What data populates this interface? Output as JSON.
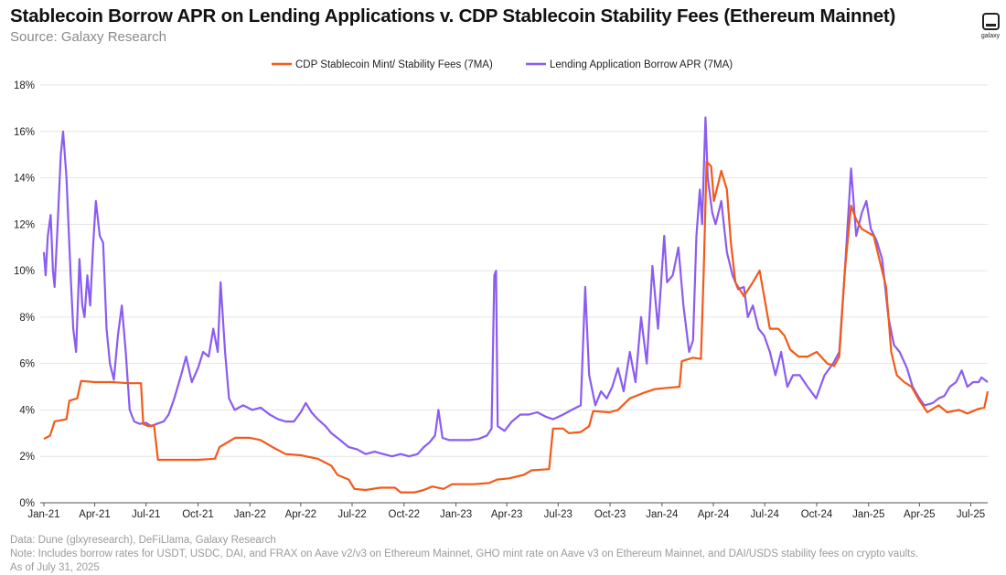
{
  "header": {
    "title": "Stablecoin Borrow APR on Lending Applications v. CDP Stablecoin Stability Fees (Ethereum Mainnet)",
    "subtitle": "Source: Galaxy Research",
    "logo_text": "galaxy"
  },
  "footer": {
    "line1": "Data: Dune (glxyresearch), DeFiLlama, Galaxy Research",
    "line2": "Note: Includes borrow rates for USDT, USDC, DAI, and FRAX on Aave v2/v3 on Ethereum Mainnet, GHO mint rate on Aave v3 on Ethereum Mainnet, and DAI/USDS stability fees on crypto vaults.",
    "line3": "As of July 31, 2025"
  },
  "chart_data": {
    "type": "line",
    "title": "Stablecoin Borrow APR on Lending Applications v. CDP Stablecoin Stability Fees (Ethereum Mainnet)",
    "x_start": "2021-01-01",
    "x_end": "2025-07-31",
    "x_ticks": [
      "Jan-21",
      "Apr-21",
      "Jul-21",
      "Oct-21",
      "Jan-22",
      "Apr-22",
      "Jul-22",
      "Oct-22",
      "Jan-23",
      "Apr-23",
      "Jul-23",
      "Oct-23",
      "Jan-24",
      "Apr-24",
      "Jul-24",
      "Oct-24",
      "Jan-25",
      "Apr-25",
      "Jul-25"
    ],
    "y_ticks": [
      "0%",
      "2%",
      "4%",
      "6%",
      "8%",
      "10%",
      "12%",
      "14%",
      "16%",
      "18%"
    ],
    "ylim": [
      0,
      18
    ],
    "grid": "horizontal",
    "legend_position": "top-center",
    "series": [
      {
        "name": "CDP Stablecoin Mint/ Stability Fees (7MA)",
        "color": "#f25a1a",
        "points": [
          [
            "2021-01-01",
            2.75
          ],
          [
            "2021-01-12",
            2.9
          ],
          [
            "2021-01-20",
            3.5
          ],
          [
            "2021-02-10",
            3.6
          ],
          [
            "2021-02-15",
            4.4
          ],
          [
            "2021-03-01",
            4.5
          ],
          [
            "2021-03-08",
            5.25
          ],
          [
            "2021-04-01",
            5.2
          ],
          [
            "2021-05-01",
            5.2
          ],
          [
            "2021-06-01",
            5.15
          ],
          [
            "2021-06-22",
            5.15
          ],
          [
            "2021-06-26",
            3.4
          ],
          [
            "2021-07-05",
            3.3
          ],
          [
            "2021-07-15",
            3.35
          ],
          [
            "2021-07-22",
            1.85
          ],
          [
            "2021-09-01",
            1.85
          ],
          [
            "2021-10-01",
            1.85
          ],
          [
            "2021-10-31",
            1.9
          ],
          [
            "2021-11-08",
            2.4
          ],
          [
            "2021-11-22",
            2.6
          ],
          [
            "2021-12-06",
            2.8
          ],
          [
            "2022-01-01",
            2.8
          ],
          [
            "2022-01-20",
            2.7
          ],
          [
            "2022-02-10",
            2.4
          ],
          [
            "2022-03-05",
            2.1
          ],
          [
            "2022-04-01",
            2.05
          ],
          [
            "2022-05-01",
            1.9
          ],
          [
            "2022-05-25",
            1.6
          ],
          [
            "2022-06-05",
            1.2
          ],
          [
            "2022-06-25",
            1.0
          ],
          [
            "2022-07-05",
            0.6
          ],
          [
            "2022-07-25",
            0.55
          ],
          [
            "2022-08-20",
            0.65
          ],
          [
            "2022-09-15",
            0.65
          ],
          [
            "2022-09-25",
            0.45
          ],
          [
            "2022-10-20",
            0.45
          ],
          [
            "2022-11-05",
            0.55
          ],
          [
            "2022-11-20",
            0.7
          ],
          [
            "2022-12-10",
            0.6
          ],
          [
            "2022-12-25",
            0.8
          ],
          [
            "2023-01-31",
            0.8
          ],
          [
            "2023-03-01",
            0.85
          ],
          [
            "2023-03-15",
            1.0
          ],
          [
            "2023-04-05",
            1.05
          ],
          [
            "2023-05-01",
            1.2
          ],
          [
            "2023-05-15",
            1.4
          ],
          [
            "2023-06-15",
            1.45
          ],
          [
            "2023-06-22",
            3.2
          ],
          [
            "2023-07-10",
            3.2
          ],
          [
            "2023-07-20",
            3.0
          ],
          [
            "2023-08-10",
            3.05
          ],
          [
            "2023-08-25",
            3.3
          ],
          [
            "2023-09-01",
            3.95
          ],
          [
            "2023-09-30",
            3.9
          ],
          [
            "2023-10-15",
            4.0
          ],
          [
            "2023-11-05",
            4.5
          ],
          [
            "2023-12-01",
            4.75
          ],
          [
            "2023-12-20",
            4.9
          ],
          [
            "2024-01-10",
            4.95
          ],
          [
            "2024-02-01",
            5.0
          ],
          [
            "2024-02-05",
            6.1
          ],
          [
            "2024-02-25",
            6.25
          ],
          [
            "2024-03-10",
            6.2
          ],
          [
            "2024-03-15",
            10.0
          ],
          [
            "2024-03-20",
            14.7
          ],
          [
            "2024-03-28",
            14.5
          ],
          [
            "2024-04-02",
            13.0
          ],
          [
            "2024-04-15",
            14.3
          ],
          [
            "2024-04-25",
            13.5
          ],
          [
            "2024-05-02",
            11.2
          ],
          [
            "2024-05-10",
            9.5
          ],
          [
            "2024-05-25",
            8.9
          ],
          [
            "2024-06-10",
            9.5
          ],
          [
            "2024-06-22",
            10.0
          ],
          [
            "2024-07-10",
            7.5
          ],
          [
            "2024-07-25",
            7.5
          ],
          [
            "2024-08-05",
            7.2
          ],
          [
            "2024-08-15",
            6.6
          ],
          [
            "2024-08-30",
            6.3
          ],
          [
            "2024-09-15",
            6.3
          ],
          [
            "2024-10-01",
            6.5
          ],
          [
            "2024-10-20",
            6.0
          ],
          [
            "2024-11-01",
            5.9
          ],
          [
            "2024-11-10",
            6.3
          ],
          [
            "2024-11-20",
            10.0
          ],
          [
            "2024-12-01",
            12.8
          ],
          [
            "2024-12-10",
            12.2
          ],
          [
            "2024-12-20",
            11.8
          ],
          [
            "2025-01-10",
            11.5
          ],
          [
            "2025-02-01",
            9.3
          ],
          [
            "2025-02-10",
            6.5
          ],
          [
            "2025-02-20",
            5.5
          ],
          [
            "2025-03-05",
            5.2
          ],
          [
            "2025-03-18",
            5.0
          ],
          [
            "2025-04-01",
            4.4
          ],
          [
            "2025-04-15",
            3.9
          ],
          [
            "2025-05-05",
            4.2
          ],
          [
            "2025-05-20",
            3.9
          ],
          [
            "2025-06-10",
            4.0
          ],
          [
            "2025-06-25",
            3.85
          ],
          [
            "2025-07-15",
            4.05
          ],
          [
            "2025-07-25",
            4.1
          ],
          [
            "2025-07-31",
            4.8
          ]
        ]
      },
      {
        "name": "Lending Application Borrow APR (7MA)",
        "color": "#8a5cf0",
        "points": [
          [
            "2021-01-01",
            10.8
          ],
          [
            "2021-01-04",
            9.8
          ],
          [
            "2021-01-08",
            11.5
          ],
          [
            "2021-01-13",
            12.4
          ],
          [
            "2021-01-17",
            10.0
          ],
          [
            "2021-01-20",
            9.3
          ],
          [
            "2021-01-25",
            11.8
          ],
          [
            "2021-01-31",
            15.0
          ],
          [
            "2021-02-04",
            16.0
          ],
          [
            "2021-02-10",
            14.0
          ],
          [
            "2021-02-17",
            10.0
          ],
          [
            "2021-02-22",
            7.5
          ],
          [
            "2021-02-27",
            6.5
          ],
          [
            "2021-03-05",
            10.5
          ],
          [
            "2021-03-10",
            8.5
          ],
          [
            "2021-03-14",
            8.0
          ],
          [
            "2021-03-19",
            9.8
          ],
          [
            "2021-03-24",
            8.5
          ],
          [
            "2021-03-29",
            11.0
          ],
          [
            "2021-04-03",
            13.0
          ],
          [
            "2021-04-10",
            11.5
          ],
          [
            "2021-04-16",
            11.2
          ],
          [
            "2021-04-22",
            7.5
          ],
          [
            "2021-04-28",
            6.0
          ],
          [
            "2021-05-05",
            5.3
          ],
          [
            "2021-05-12",
            7.2
          ],
          [
            "2021-05-19",
            8.5
          ],
          [
            "2021-05-26",
            6.5
          ],
          [
            "2021-06-02",
            4.0
          ],
          [
            "2021-06-10",
            3.5
          ],
          [
            "2021-06-20",
            3.4
          ],
          [
            "2021-07-01",
            3.45
          ],
          [
            "2021-07-10",
            3.3
          ],
          [
            "2021-07-20",
            3.4
          ],
          [
            "2021-08-01",
            3.5
          ],
          [
            "2021-08-10",
            3.8
          ],
          [
            "2021-08-20",
            4.5
          ],
          [
            "2021-09-01",
            5.5
          ],
          [
            "2021-09-10",
            6.3
          ],
          [
            "2021-09-20",
            5.2
          ],
          [
            "2021-10-01",
            5.8
          ],
          [
            "2021-10-10",
            6.5
          ],
          [
            "2021-10-20",
            6.3
          ],
          [
            "2021-10-28",
            7.5
          ],
          [
            "2021-11-05",
            6.5
          ],
          [
            "2021-11-10",
            9.5
          ],
          [
            "2021-11-18",
            6.5
          ],
          [
            "2021-11-25",
            4.5
          ],
          [
            "2021-12-05",
            4.0
          ],
          [
            "2021-12-20",
            4.2
          ],
          [
            "2022-01-05",
            4.0
          ],
          [
            "2022-01-20",
            4.1
          ],
          [
            "2022-02-05",
            3.8
          ],
          [
            "2022-02-20",
            3.6
          ],
          [
            "2022-03-05",
            3.5
          ],
          [
            "2022-03-20",
            3.5
          ],
          [
            "2022-04-01",
            3.9
          ],
          [
            "2022-04-10",
            4.3
          ],
          [
            "2022-04-20",
            3.9
          ],
          [
            "2022-05-01",
            3.6
          ],
          [
            "2022-05-15",
            3.3
          ],
          [
            "2022-05-25",
            3.0
          ],
          [
            "2022-06-10",
            2.7
          ],
          [
            "2022-06-25",
            2.4
          ],
          [
            "2022-07-10",
            2.3
          ],
          [
            "2022-07-25",
            2.1
          ],
          [
            "2022-08-10",
            2.2
          ],
          [
            "2022-08-25",
            2.1
          ],
          [
            "2022-09-10",
            2.0
          ],
          [
            "2022-09-25",
            2.1
          ],
          [
            "2022-10-10",
            2.0
          ],
          [
            "2022-10-25",
            2.1
          ],
          [
            "2022-11-05",
            2.4
          ],
          [
            "2022-11-15",
            2.6
          ],
          [
            "2022-11-25",
            2.9
          ],
          [
            "2022-12-01",
            4.0
          ],
          [
            "2022-12-08",
            2.8
          ],
          [
            "2022-12-20",
            2.7
          ],
          [
            "2023-01-10",
            2.7
          ],
          [
            "2023-01-25",
            2.7
          ],
          [
            "2023-02-10",
            2.75
          ],
          [
            "2023-02-25",
            2.9
          ],
          [
            "2023-03-05",
            3.2
          ],
          [
            "2023-03-10",
            9.8
          ],
          [
            "2023-03-13",
            10.0
          ],
          [
            "2023-03-16",
            3.3
          ],
          [
            "2023-03-28",
            3.1
          ],
          [
            "2023-04-10",
            3.5
          ],
          [
            "2023-04-25",
            3.8
          ],
          [
            "2023-05-10",
            3.8
          ],
          [
            "2023-05-25",
            3.9
          ],
          [
            "2023-06-10",
            3.7
          ],
          [
            "2023-06-22",
            3.6
          ],
          [
            "2023-07-10",
            3.8
          ],
          [
            "2023-07-25",
            4.0
          ],
          [
            "2023-08-10",
            4.2
          ],
          [
            "2023-08-18",
            9.3
          ],
          [
            "2023-08-25",
            5.5
          ],
          [
            "2023-09-05",
            4.2
          ],
          [
            "2023-09-15",
            4.8
          ],
          [
            "2023-09-25",
            4.5
          ],
          [
            "2023-10-05",
            5.0
          ],
          [
            "2023-10-15",
            5.8
          ],
          [
            "2023-10-25",
            4.8
          ],
          [
            "2023-11-05",
            6.5
          ],
          [
            "2023-11-15",
            5.2
          ],
          [
            "2023-11-25",
            8.0
          ],
          [
            "2023-12-05",
            6.0
          ],
          [
            "2023-12-15",
            10.2
          ],
          [
            "2023-12-25",
            7.5
          ],
          [
            "2024-01-05",
            11.5
          ],
          [
            "2024-01-10",
            9.5
          ],
          [
            "2024-01-20",
            9.8
          ],
          [
            "2024-01-30",
            11.0
          ],
          [
            "2024-02-08",
            8.5
          ],
          [
            "2024-02-18",
            6.5
          ],
          [
            "2024-02-25",
            7.0
          ],
          [
            "2024-03-02",
            11.5
          ],
          [
            "2024-03-08",
            13.5
          ],
          [
            "2024-03-12",
            12.0
          ],
          [
            "2024-03-18",
            16.6
          ],
          [
            "2024-03-22",
            14.0
          ],
          [
            "2024-03-30",
            12.5
          ],
          [
            "2024-04-05",
            12.0
          ],
          [
            "2024-04-15",
            13.0
          ],
          [
            "2024-04-25",
            10.8
          ],
          [
            "2024-05-05",
            9.8
          ],
          [
            "2024-05-15",
            9.2
          ],
          [
            "2024-05-25",
            9.3
          ],
          [
            "2024-06-01",
            8.0
          ],
          [
            "2024-06-10",
            8.5
          ],
          [
            "2024-06-20",
            7.5
          ],
          [
            "2024-06-30",
            7.2
          ],
          [
            "2024-07-10",
            6.5
          ],
          [
            "2024-07-20",
            5.5
          ],
          [
            "2024-07-30",
            6.5
          ],
          [
            "2024-08-10",
            5.0
          ],
          [
            "2024-08-20",
            5.5
          ],
          [
            "2024-09-01",
            5.5
          ],
          [
            "2024-09-15",
            5.0
          ],
          [
            "2024-09-30",
            4.5
          ],
          [
            "2024-10-15",
            5.5
          ],
          [
            "2024-10-30",
            6.0
          ],
          [
            "2024-11-10",
            6.5
          ],
          [
            "2024-11-20",
            10.0
          ],
          [
            "2024-12-01",
            14.4
          ],
          [
            "2024-12-10",
            11.5
          ],
          [
            "2024-12-20",
            12.5
          ],
          [
            "2024-12-28",
            13.0
          ],
          [
            "2025-01-05",
            11.8
          ],
          [
            "2025-01-15",
            11.3
          ],
          [
            "2025-01-25",
            10.5
          ],
          [
            "2025-02-05",
            8.0
          ],
          [
            "2025-02-15",
            6.8
          ],
          [
            "2025-02-25",
            6.5
          ],
          [
            "2025-03-10",
            5.8
          ],
          [
            "2025-03-20",
            5.0
          ],
          [
            "2025-04-01",
            4.5
          ],
          [
            "2025-04-10",
            4.2
          ],
          [
            "2025-04-25",
            4.3
          ],
          [
            "2025-05-05",
            4.5
          ],
          [
            "2025-05-15",
            4.6
          ],
          [
            "2025-05-25",
            5.0
          ],
          [
            "2025-06-05",
            5.2
          ],
          [
            "2025-06-15",
            5.7
          ],
          [
            "2025-06-25",
            5.0
          ],
          [
            "2025-07-05",
            5.2
          ],
          [
            "2025-07-15",
            5.2
          ],
          [
            "2025-07-20",
            5.4
          ],
          [
            "2025-07-31",
            5.2
          ]
        ]
      }
    ]
  }
}
